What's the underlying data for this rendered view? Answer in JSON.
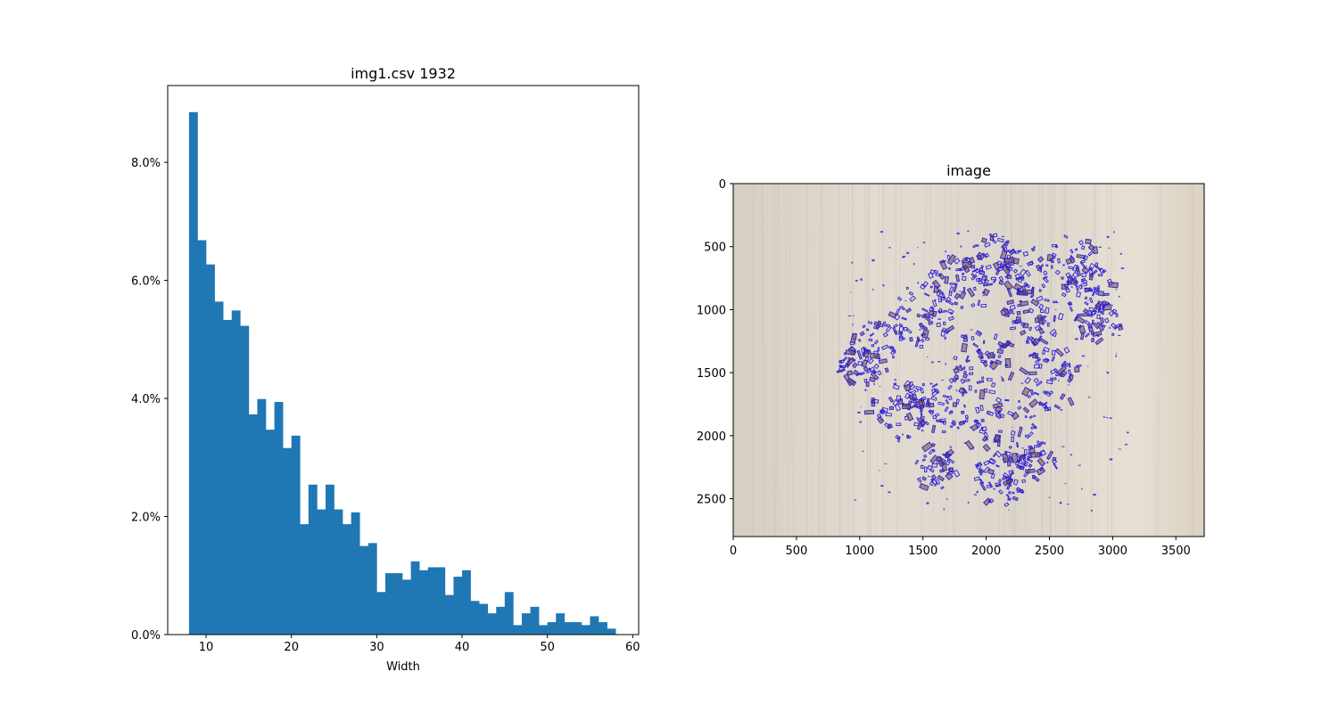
{
  "chart_data": [
    {
      "type": "bar",
      "title": "img1.csv 1932",
      "xlabel": "Width",
      "ylabel": "",
      "bar_color": "#1f77b4",
      "xlim": [
        5.5,
        60.7
      ],
      "ylim": [
        0,
        9.3
      ],
      "xticks": [
        10,
        20,
        30,
        40,
        50,
        60
      ],
      "xtick_labels": [
        "10",
        "20",
        "30",
        "40",
        "50",
        "60"
      ],
      "yticks": [
        0,
        2,
        4,
        6,
        8
      ],
      "ytick_labels": [
        "0.0%",
        "2.0%",
        "4.0%",
        "6.0%",
        "8.0%"
      ],
      "y_unit": "percent",
      "bins": {
        "start": 8,
        "width": 1,
        "values": [
          8.85,
          6.68,
          6.27,
          5.64,
          5.33,
          5.49,
          5.23,
          3.73,
          3.99,
          3.47,
          3.94,
          3.16,
          3.37,
          1.87,
          2.54,
          2.12,
          2.54,
          2.12,
          1.87,
          2.07,
          1.5,
          1.55,
          0.72,
          1.04,
          1.04,
          0.93,
          1.24,
          1.09,
          1.14,
          1.14,
          0.67,
          0.98,
          1.09,
          0.57,
          0.52,
          0.36,
          0.47,
          0.72,
          0.16,
          0.36,
          0.47,
          0.16,
          0.21,
          0.36,
          0.21,
          0.21,
          0.16,
          0.31,
          0.21,
          0.1
        ]
      },
      "grid": false
    },
    {
      "type": "image",
      "title": "image",
      "xlim": [
        0,
        3724
      ],
      "ylim": [
        2800,
        0
      ],
      "xticks": [
        0,
        500,
        1000,
        1500,
        2000,
        2500,
        3000,
        3500
      ],
      "xtick_labels": [
        "0",
        "500",
        "1000",
        "1500",
        "2000",
        "2500",
        "3000",
        "3500"
      ],
      "yticks": [
        0,
        500,
        1000,
        1500,
        2000,
        2500
      ],
      "ytick_labels": [
        "0",
        "500",
        "1000",
        "1500",
        "2000",
        "2500"
      ],
      "background_color": "#ddd5ca",
      "marker_color": "#2a1fd6",
      "particle_color": "#7a4a33",
      "clusters": [
        {
          "x": 1780,
          "y": 820,
          "r": 180
        },
        {
          "x": 2380,
          "y": 1060,
          "r": 170
        },
        {
          "x": 1980,
          "y": 1400,
          "r": 190
        },
        {
          "x": 2520,
          "y": 1540,
          "r": 180
        },
        {
          "x": 2130,
          "y": 1970,
          "r": 200
        },
        {
          "x": 1500,
          "y": 1050,
          "r": 180
        },
        {
          "x": 1320,
          "y": 1800,
          "r": 170
        },
        {
          "x": 2800,
          "y": 850,
          "r": 160
        },
        {
          "x": 2700,
          "y": 600,
          "r": 140
        },
        {
          "x": 1150,
          "y": 1300,
          "r": 150
        },
        {
          "x": 1650,
          "y": 1750,
          "r": 170
        },
        {
          "x": 2100,
          "y": 2350,
          "r": 150
        },
        {
          "x": 1600,
          "y": 2250,
          "r": 130
        },
        {
          "x": 2050,
          "y": 600,
          "r": 150
        },
        {
          "x": 2300,
          "y": 700,
          "r": 140
        },
        {
          "x": 2900,
          "y": 1100,
          "r": 120
        },
        {
          "x": 1000,
          "y": 1450,
          "r": 110
        },
        {
          "x": 2400,
          "y": 2200,
          "r": 110
        }
      ]
    }
  ]
}
